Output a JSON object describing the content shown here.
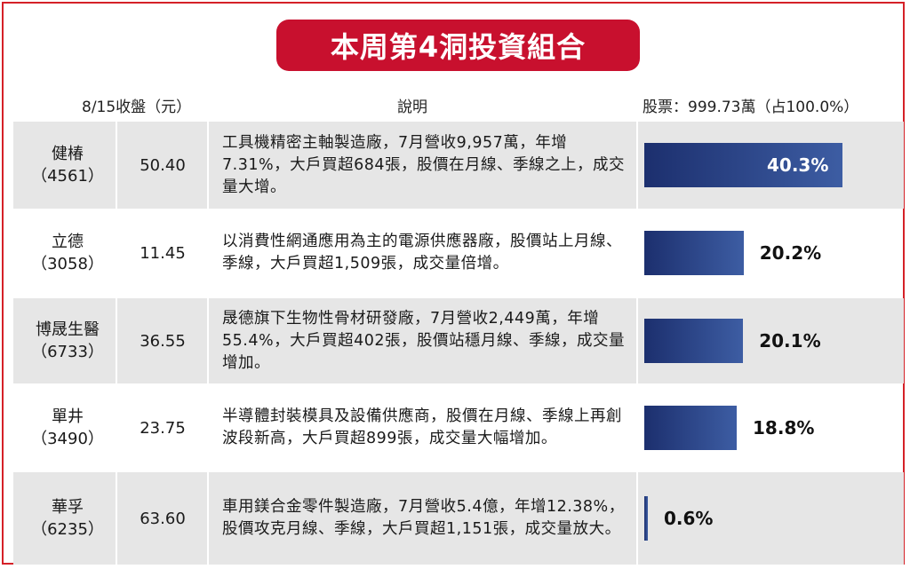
{
  "title": "本周第4洞投資組合",
  "headers": {
    "date_price": "8/15收盤（元）",
    "description": "說明",
    "stock": "股票：999.73萬（占100.0%）"
  },
  "chart_data": {
    "type": "bar",
    "title": "本周第4洞投資組合",
    "unit": "%",
    "categories": [
      "健椿（4561）",
      "立德（3058）",
      "博晟生醫（6733）",
      "單井（3490）",
      "華孚（6235）"
    ],
    "values": [
      40.3,
      20.2,
      20.1,
      18.8,
      0.6
    ],
    "xlim": [
      0,
      40.3
    ]
  },
  "rows": [
    {
      "name": "健椿",
      "code": "（4561）",
      "price": "50.40",
      "desc": "工具機精密主軸製造廠，7月營收9,957萬，年增7.31%，大戶買超684張，股價在月線、季線之上，成交量大增。",
      "pct": 40.3,
      "pct_label": "40.3%"
    },
    {
      "name": "立德",
      "code": "（3058）",
      "price": "11.45",
      "desc": "以消費性網通應用為主的電源供應器廠，股價站上月線、季線，大戶買超1,509張，成交量倍增。",
      "pct": 20.2,
      "pct_label": "20.2%"
    },
    {
      "name": "博晟生醫",
      "code": "（6733）",
      "price": "36.55",
      "desc": "晟德旗下生物性骨材研發廠，7月營收2,449萬，年增55.4%，大戶買超402張，股價站穩月線、季線，成交量增加。",
      "pct": 20.1,
      "pct_label": "20.1%"
    },
    {
      "name": "單井",
      "code": "（3490）",
      "price": "23.75",
      "desc": "半導體封裝模具及設備供應商，股價在月線、季線上再創波段新高，大戶買超899張，成交量大幅增加。",
      "pct": 18.8,
      "pct_label": "18.8%"
    },
    {
      "name": "華孚",
      "code": "（6235）",
      "price": "63.60",
      "desc": "車用鎂合金零件製造廠，7月營收5.4億，年增12.38%，股價攻克月線、季線，大戶買超1,151張，成交量放大。",
      "pct": 0.6,
      "pct_label": "0.6%"
    }
  ]
}
